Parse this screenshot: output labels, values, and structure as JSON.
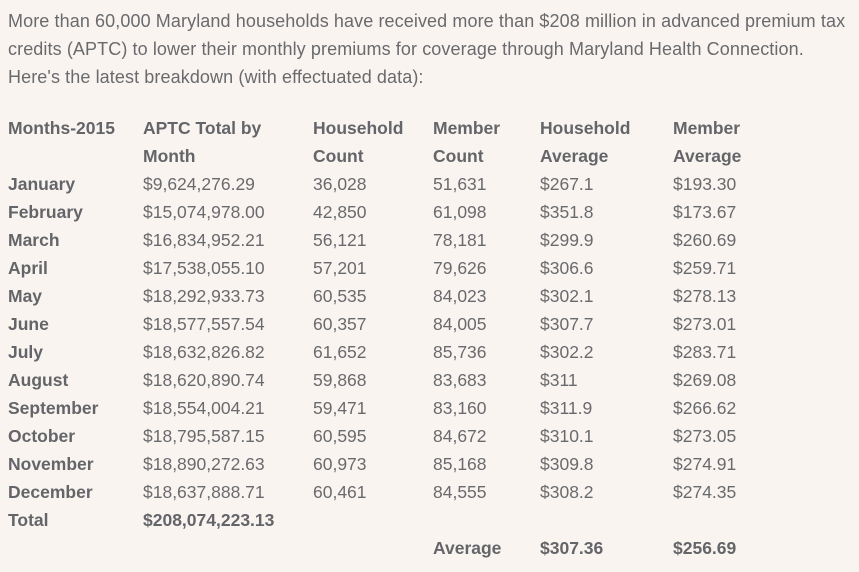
{
  "page": {
    "background_color": "#faf4f1",
    "text_color": "#696a6d"
  },
  "intro": {
    "text": "More than 60,000 Maryland households have received more than $208 million in advanced premium tax credits (APTC) to lower their monthly premiums for coverage through Maryland Health Connection. Here's the latest breakdown (with effectuated data):"
  },
  "table": {
    "columns": [
      "Months-2015",
      "APTC Total by Month",
      "Household Count",
      "Member Count",
      "Household Average",
      "Member Average"
    ],
    "rows": [
      [
        "January",
        "$9,624,276.29",
        "36,028",
        "51,631",
        "$267.1",
        "$193.30"
      ],
      [
        "February",
        "$15,074,978.00",
        "42,850",
        "61,098",
        "$351.8",
        "$173.67"
      ],
      [
        "March",
        "$16,834,952.21",
        "56,121",
        "78,181",
        "$299.9",
        "$260.69"
      ],
      [
        "April",
        "$17,538,055.10",
        "57,201",
        "79,626",
        "$306.6",
        "$259.71"
      ],
      [
        "May",
        "$18,292,933.73",
        "60,535",
        "84,023",
        "$302.1",
        "$278.13"
      ],
      [
        "June",
        "$18,577,557.54",
        "60,357",
        "84,005",
        "$307.7",
        "$273.01"
      ],
      [
        "July",
        "$18,632,826.82",
        "61,652",
        "85,736",
        "$302.2",
        "$283.71"
      ],
      [
        "August",
        "$18,620,890.74",
        "59,868",
        "83,683",
        "$311",
        "$269.08"
      ],
      [
        "September",
        "$18,554,004.21",
        "59,471",
        "83,160",
        "$311.9",
        "$266.62"
      ],
      [
        "October",
        "$18,795,587.15",
        "60,595",
        "84,672",
        "$310.1",
        "$273.05"
      ],
      [
        "November",
        "$18,890,272.63",
        "60,973",
        "85,168",
        "$309.8",
        "$274.91"
      ],
      [
        "December",
        "$18,637,888.71",
        "60,461",
        "84,555",
        "$308.2",
        "$274.35"
      ]
    ],
    "total": {
      "label": "Total",
      "value": "$208,074,223.13"
    },
    "average": {
      "label": "Average",
      "household_average": "$307.36",
      "member_average": "$256.69"
    }
  }
}
